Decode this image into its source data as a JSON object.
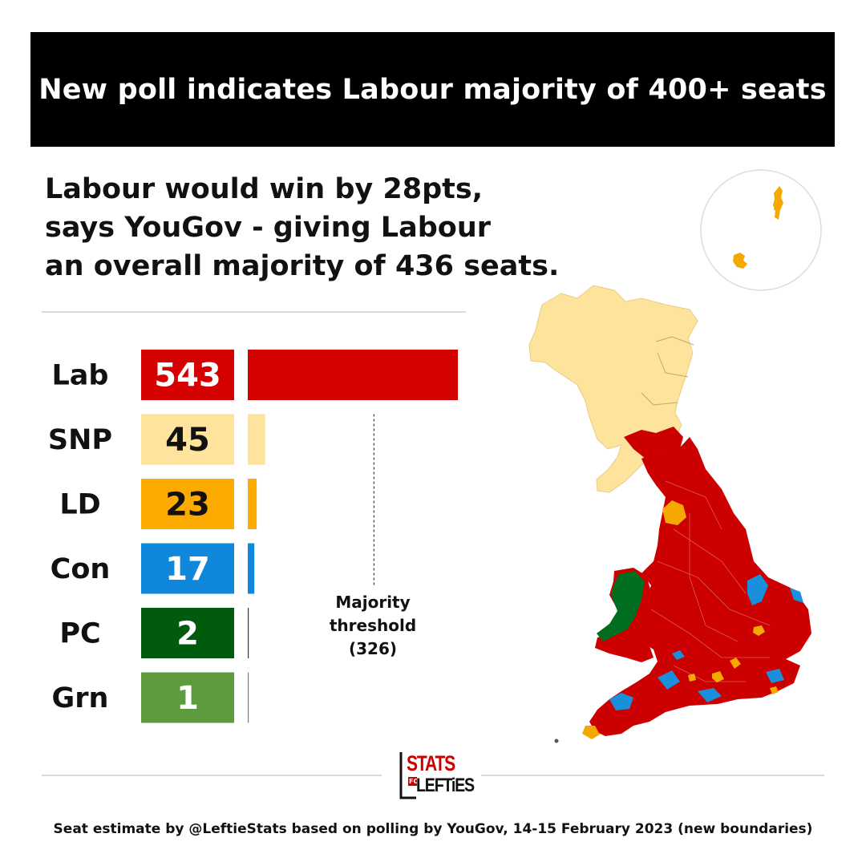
{
  "header": {
    "title": "New poll indicates Labour majority of 400+ seats"
  },
  "subtitle": {
    "lines": [
      "Labour would win by 28pts,",
      "says YouGov - giving Labour",
      "an overall majority of 436 seats."
    ]
  },
  "chart_data": {
    "type": "bar",
    "orientation": "horizontal",
    "categories": [
      "Lab",
      "SNP",
      "LD",
      "Con",
      "PC",
      "Grn"
    ],
    "values": [
      543,
      45,
      23,
      17,
      2,
      1
    ],
    "colors": [
      "#d50000",
      "#fde39c",
      "#fcaa00",
      "#0f87da",
      "#005b0e",
      "#5e9a3e"
    ],
    "value_text_colors": [
      "#ffffff",
      "#111111",
      "#111111",
      "#ffffff",
      "#ffffff",
      "#ffffff"
    ],
    "reference_line": {
      "value": 326,
      "label_lines": [
        "Majority",
        "threshold",
        "(326)"
      ],
      "style": "dashed"
    },
    "xlim": [
      0,
      543
    ],
    "grid": false,
    "legend": "none"
  },
  "map": {
    "description_colors": {
      "Lab": "#cc0000",
      "SNP": "#fde39c",
      "LD": "#f5a800",
      "Con": "#1a8fdc",
      "PC": "#006e1e"
    }
  },
  "logo": {
    "top": "STATS",
    "middle": "FOR",
    "bottom": "LEFTiES"
  },
  "footer": {
    "text": "Seat estimate by @LeftieStats based on polling by YouGov, 14-15 February 2023 (new boundaries)"
  }
}
